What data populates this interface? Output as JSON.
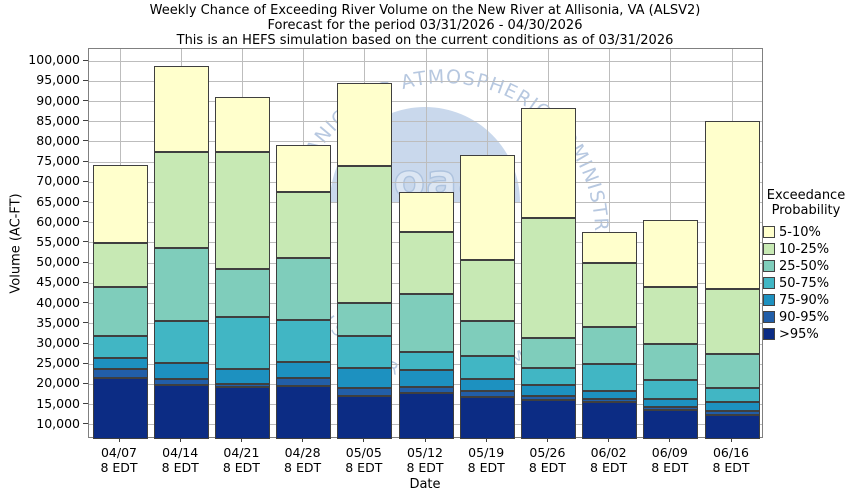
{
  "title": {
    "line1": "Weekly Chance of Exceeding River Volume on the New River at Allisonia, VA (ALSV2)",
    "line2": "Forecast for the period 03/31/2026 - 04/30/2026",
    "line3": "This is an HEFS simulation based on the current conditions as of 03/31/2026"
  },
  "watermark": {
    "ring_text_top": "NATIONAL OCEANIC AND ATMOSPHERIC ADMINISTRATION",
    "ring_text_bottom": "U.S. DEPARTMENT OF COMMERCE",
    "logo_word": "noaa"
  },
  "chart_data": {
    "type": "bar",
    "stacked": true,
    "title": "Weekly Chance of Exceeding River Volume on the New River at Allisonia, VA (ALSV2)",
    "xlabel": "Date",
    "ylabel": "Volume (AC-FT)",
    "categories": [
      "04/07",
      "04/14",
      "04/21",
      "04/28",
      "05/05",
      "05/12",
      "05/19",
      "05/26",
      "06/02",
      "06/09",
      "06/16"
    ],
    "tick_time_label": "8 EDT",
    "ylim": [
      6500,
      103000
    ],
    "ytick_values": [
      10000,
      15000,
      20000,
      25000,
      30000,
      35000,
      40000,
      45000,
      50000,
      55000,
      60000,
      65000,
      70000,
      75000,
      80000,
      85000,
      90000,
      95000,
      100000
    ],
    "grid": true,
    "legend_position": "right",
    "base_value": 6500,
    "series": [
      {
        "name": ">95%",
        "color": "#0c2c84",
        "tops": [
          21600,
          19800,
          19300,
          19500,
          17100,
          17900,
          17000,
          16200,
          15600,
          13600,
          12500
        ]
      },
      {
        "name": "90-95%",
        "color": "#225ea8",
        "tops": [
          23700,
          21400,
          20100,
          21500,
          19000,
          19300,
          18300,
          17200,
          16400,
          14500,
          13500
        ]
      },
      {
        "name": "75-90%",
        "color": "#1d91c0",
        "tops": [
          26500,
          25300,
          23800,
          25500,
          24000,
          23500,
          21400,
          19800,
          18300,
          16300,
          15600
        ]
      },
      {
        "name": "50-75%",
        "color": "#41b6c4",
        "tops": [
          32000,
          35800,
          36600,
          36000,
          32100,
          28000,
          27100,
          24000,
          25000,
          21200,
          19000
        ]
      },
      {
        "name": "25-50%",
        "color": "#7fcdbb",
        "tops": [
          44000,
          53700,
          48500,
          51400,
          40200,
          42300,
          35800,
          31400,
          34100,
          30000,
          27600
        ]
      },
      {
        "name": "10-25%",
        "color": "#c7e9b4",
        "tops": [
          55000,
          77600,
          77400,
          67500,
          74100,
          57800,
          50900,
          61100,
          50000,
          44000,
          43600
        ]
      },
      {
        "name": "5-10%",
        "color": "#ffffcc",
        "tops": [
          74400,
          98800,
          91000,
          79200,
          94500,
          67500,
          76800,
          88300,
          57600,
          60700,
          85300
        ]
      }
    ],
    "legend": {
      "title_line1": "Exceedance",
      "title_line2": "Probability"
    }
  }
}
